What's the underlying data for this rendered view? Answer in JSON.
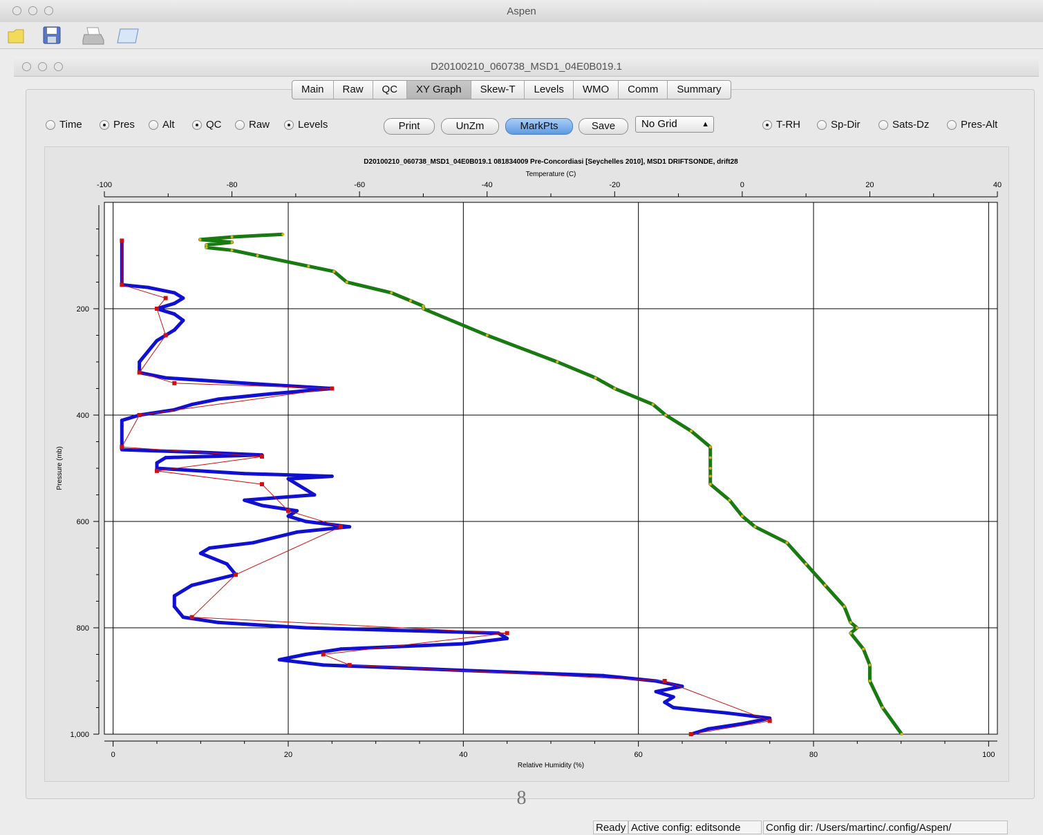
{
  "app": {
    "title": "Aspen"
  },
  "toolbar": {
    "icons": [
      "folder-icon",
      "save-icon",
      "print-icon",
      "window-icon"
    ]
  },
  "document": {
    "title": "D20100210_060738_MSD1_04E0B019.1"
  },
  "tabs": [
    "Main",
    "Raw",
    "QC",
    "XY Graph",
    "Skew-T",
    "Levels",
    "WMO",
    "Comm",
    "Summary"
  ],
  "active_tab": "XY Graph",
  "left_radios": [
    {
      "label": "Time",
      "checked": false
    },
    {
      "label": "Pres",
      "checked": true
    },
    {
      "label": "Alt",
      "checked": false
    },
    {
      "label": "QC",
      "checked": true
    },
    {
      "label": "Raw",
      "checked": false
    },
    {
      "label": "Levels",
      "checked": true
    }
  ],
  "buttons": {
    "print": "Print",
    "unzoom": "UnZm",
    "markpts": "MarkPts",
    "save": "Save"
  },
  "grid_select": {
    "value": "No Grid"
  },
  "right_radios": [
    {
      "label": "T-RH",
      "checked": true
    },
    {
      "label": "Sp-Dir",
      "checked": false
    },
    {
      "label": "Sats-Dz",
      "checked": false
    },
    {
      "label": "Pres-Alt",
      "checked": false
    }
  ],
  "page_number": "8",
  "status": {
    "ready": "Ready",
    "config": "Active config: editsonde",
    "config_dir": "Config dir: /Users/martinc/.config/Aspen/"
  },
  "colors": {
    "rh": "#1010d0",
    "rh_levels": "#cc1111",
    "temp": "#1a7a12",
    "temp_marks": "#d8b020",
    "accent": "#5e9be3"
  },
  "chart_data": {
    "type": "line",
    "title": "D20100210_060738_MSD1_04E0B019.1 081834009 Pre-Concordiasi [Seychelles 2010], MSD1 DRIFTSONDE, drift28",
    "x_top_label": "Temperature (C)",
    "x_top_range": [
      -100,
      40
    ],
    "x_top_ticks": [
      "-100",
      "-80",
      "-60",
      "-40",
      "-20",
      "0",
      "20",
      "40"
    ],
    "x_bottom_label": "Relative Humidity (%)",
    "x_bottom_range": [
      -1,
      101
    ],
    "x_bottom_ticks": [
      "0",
      "20",
      "40",
      "60",
      "80",
      "100"
    ],
    "y_label": "Pressure (mb)",
    "y_range": [
      0,
      1000
    ],
    "y_inverted": true,
    "y_ticks": [
      "200",
      "400",
      "600",
      "800",
      "1,000"
    ],
    "grid": "on",
    "series": [
      {
        "axis": "rh",
        "p": [
          72,
          155,
          160,
          170,
          180,
          190,
          200,
          210,
          222,
          240,
          260,
          280,
          300,
          310,
          320,
          330,
          340,
          350,
          360,
          370,
          380,
          390,
          400,
          410,
          420,
          450,
          465,
          470,
          475,
          480,
          490,
          500,
          510,
          515,
          520,
          530,
          540,
          550,
          560,
          570,
          580,
          590,
          600,
          610,
          620,
          640,
          650,
          660,
          680,
          700,
          720,
          740,
          760,
          780,
          790,
          800,
          810,
          820,
          830,
          840,
          850,
          860,
          870,
          880,
          890,
          900,
          910,
          920,
          930,
          940,
          950,
          960,
          970,
          980,
          990,
          1000
        ],
        "v": [
          1,
          1,
          4,
          7,
          8,
          7,
          5,
          7,
          8,
          7,
          5,
          4,
          3,
          3,
          3,
          6,
          15,
          25,
          18,
          12,
          9,
          7,
          3,
          1,
          1,
          1,
          1,
          10,
          17,
          6,
          5,
          5,
          15,
          25,
          20,
          21,
          22,
          23,
          15,
          17,
          21,
          20,
          22,
          27,
          21,
          16,
          11,
          10,
          13,
          14,
          9,
          7,
          7,
          8,
          12,
          22,
          44,
          45,
          40,
          26,
          22,
          19,
          24,
          40,
          56,
          62,
          65,
          62,
          64,
          63,
          64,
          70,
          75,
          72,
          68,
          66
        ]
      },
      {
        "axis": "rh_levels",
        "p": [
          72,
          155,
          180,
          200,
          250,
          320,
          340,
          350,
          400,
          460,
          478,
          505,
          530,
          580,
          610,
          700,
          780,
          810,
          850,
          870,
          900,
          975,
          1000
        ],
        "v": [
          1,
          1,
          6,
          5,
          6,
          3,
          7,
          25,
          3,
          1,
          17,
          5,
          17,
          20,
          26,
          14,
          9,
          45,
          24,
          27,
          63,
          75,
          66
        ]
      },
      {
        "axis": "temp",
        "p": [
          60,
          65,
          70,
          75,
          80,
          85,
          90,
          100,
          120,
          130,
          150,
          170,
          185,
          195,
          200,
          250,
          300,
          330,
          350,
          380,
          400,
          430,
          460,
          480,
          500,
          515,
          530,
          560,
          590,
          610,
          640,
          680,
          720,
          760,
          790,
          800,
          810,
          840,
          870,
          900,
          950,
          1000
        ],
        "v": [
          -72,
          -80,
          -85,
          -80,
          -84,
          -84,
          -80,
          -76,
          -68,
          -64,
          -62,
          -55,
          -52,
          -50,
          -50,
          -40,
          -29,
          -23,
          -20,
          -14,
          -12,
          -8,
          -5,
          -5,
          -5,
          -5,
          -5,
          -2,
          0,
          2,
          7,
          10,
          13,
          16,
          17,
          18,
          17,
          19,
          20,
          20,
          22,
          25
        ]
      }
    ]
  }
}
